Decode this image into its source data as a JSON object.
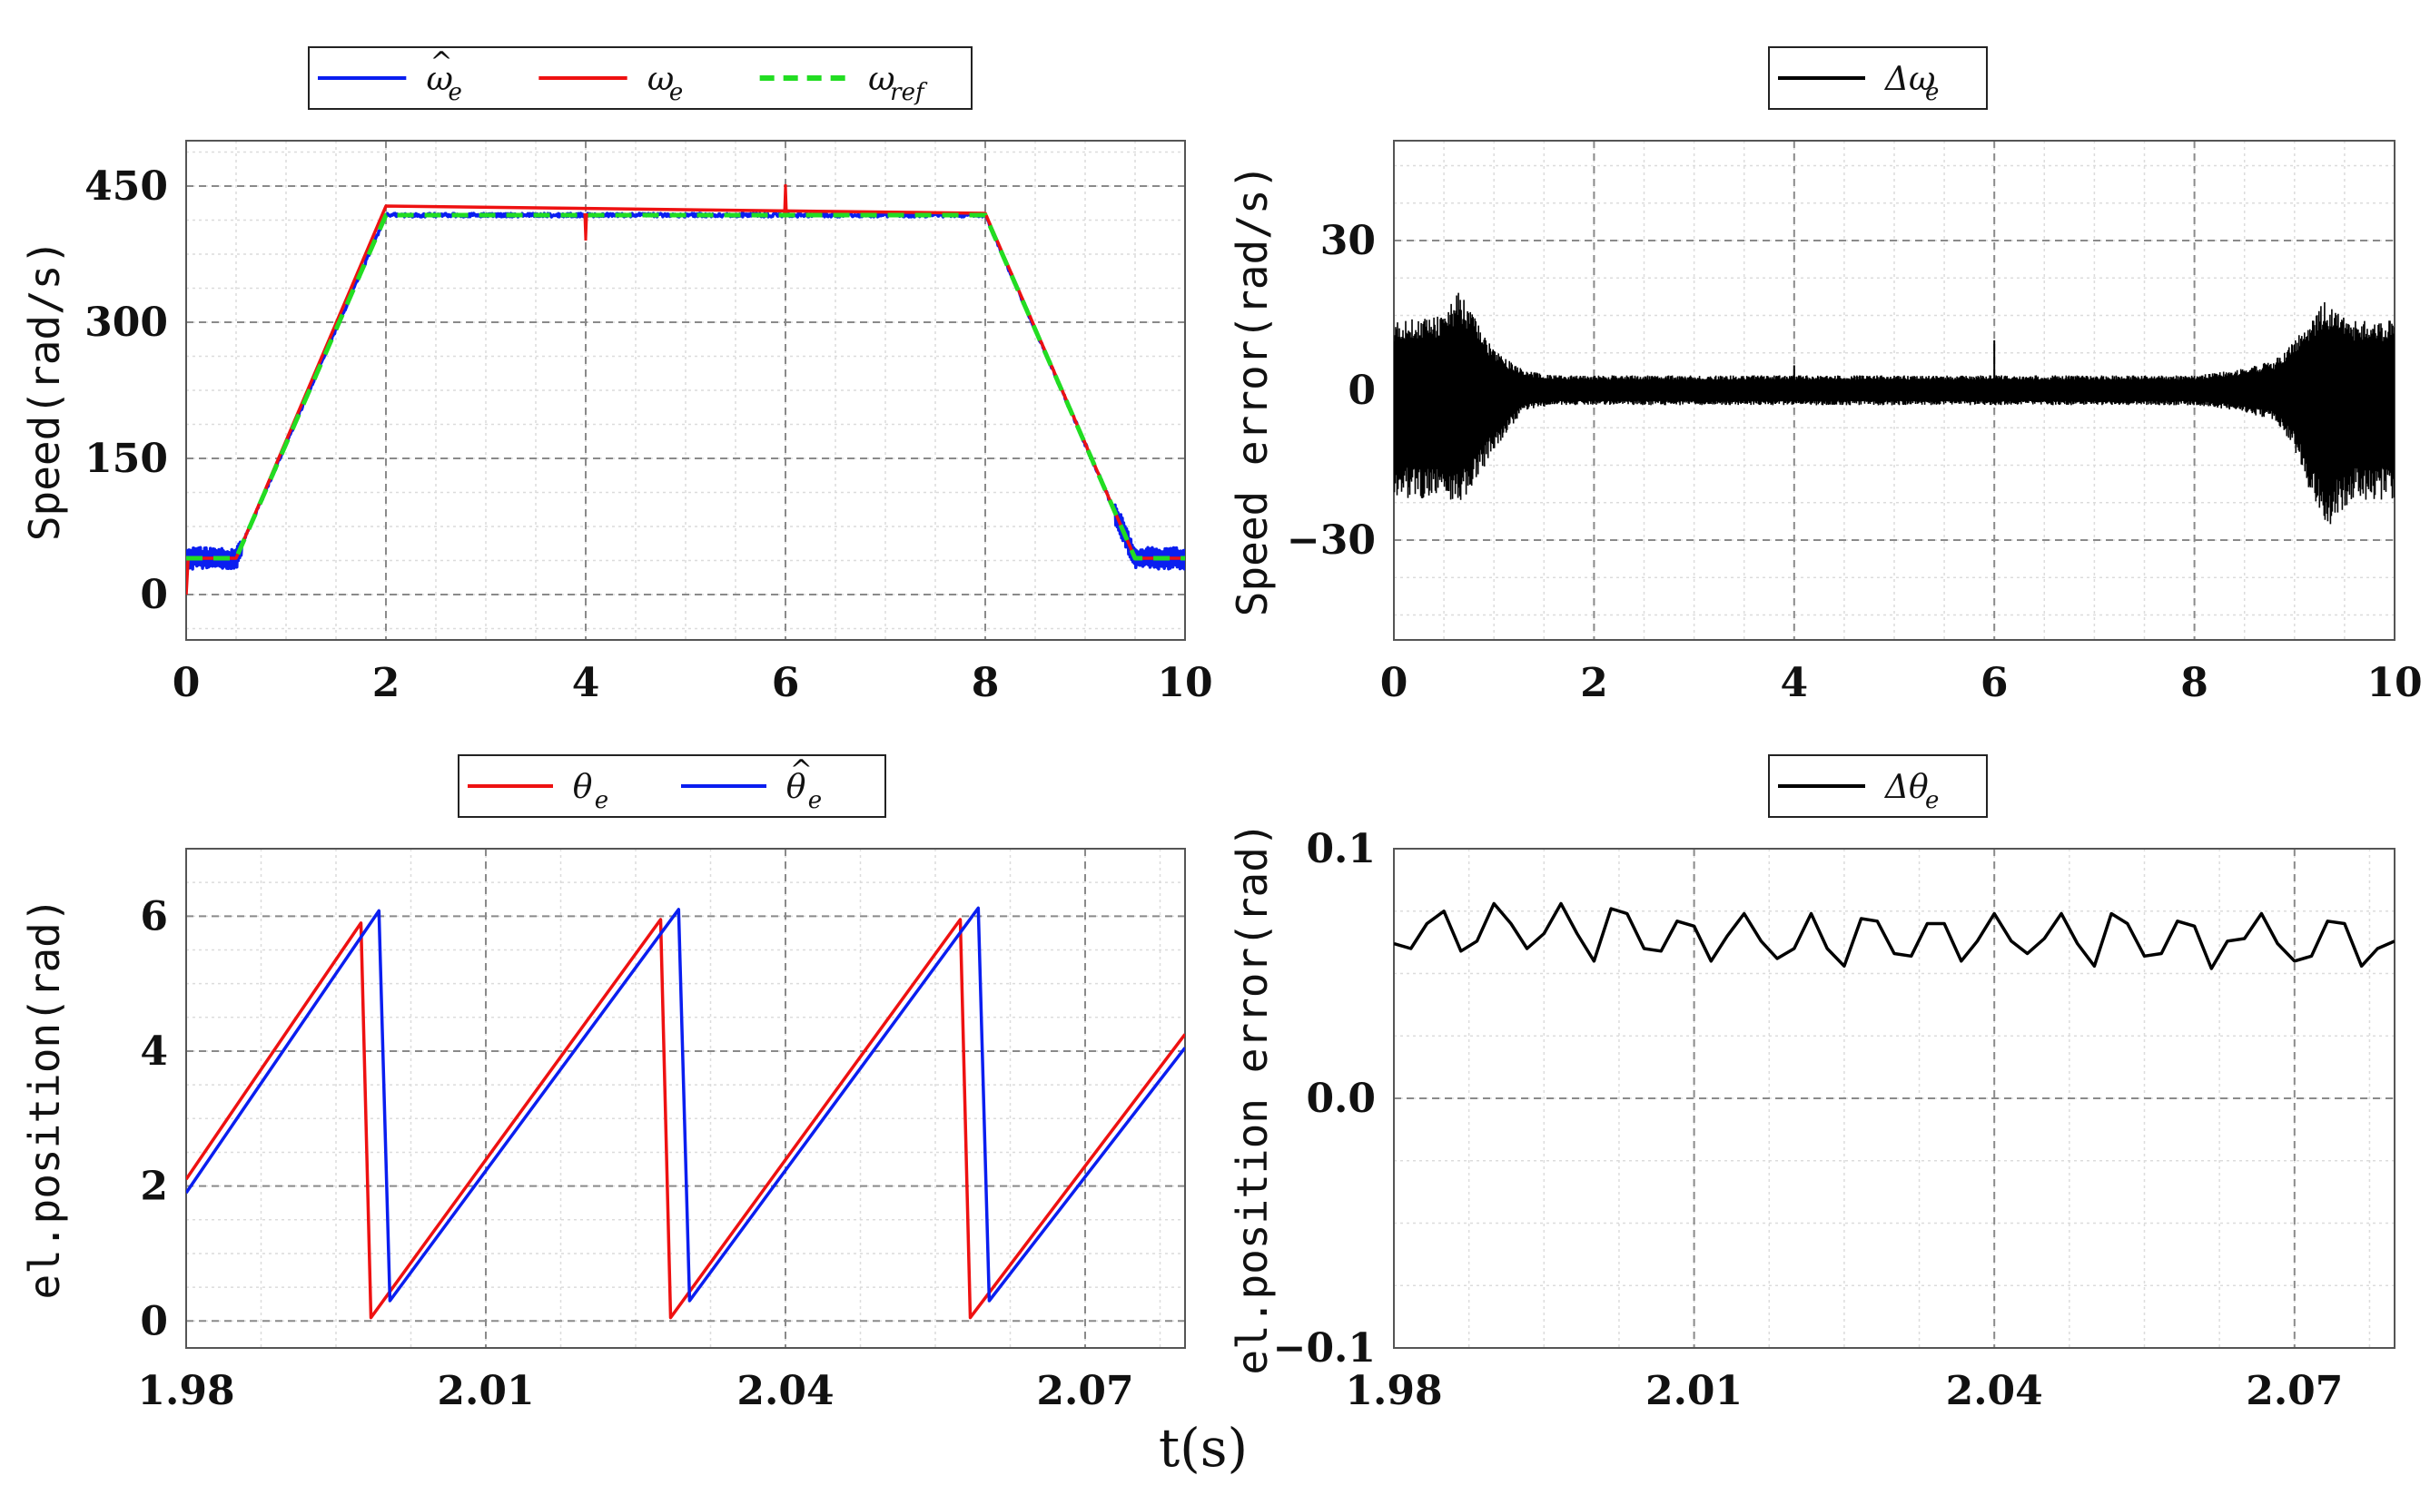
{
  "figure": {
    "xlabel_shared": "t(s)"
  },
  "chart_data": [
    {
      "id": "speed",
      "type": "line",
      "ylabel": "Speed(rad/s)",
      "xlabel": "",
      "xlim": [
        0,
        10
      ],
      "ylim": [
        -50,
        500
      ],
      "xticks": [
        0,
        2,
        4,
        6,
        8,
        10
      ],
      "xtick_labels": [
        "0",
        "2",
        "4",
        "6",
        "8",
        "10"
      ],
      "yticks": [
        0,
        150,
        300,
        450
      ],
      "ytick_labels": [
        "0",
        "150",
        "300",
        "450"
      ],
      "legend": [
        {
          "name": "ω",
          "sub": "e",
          "hat": "^",
          "color": "#0a1ef0",
          "dash": "solid"
        },
        {
          "name": "ω",
          "sub": "e",
          "hat": "",
          "color": "#ee1111",
          "dash": "solid"
        },
        {
          "name": "ω",
          "sub": "ref",
          "hat": "",
          "color": "#22dd22",
          "dash": "dashed"
        }
      ],
      "series": [
        {
          "name": "ω_e estimated",
          "color": "#0a1ef0",
          "x": [
            0,
            0.5,
            2,
            8,
            9.5,
            10
          ],
          "y": [
            40,
            40,
            418,
            418,
            40,
            40
          ],
          "noise_ranges": [
            [
              0,
              0.55,
              12
            ],
            [
              9.3,
              10,
              12
            ]
          ]
        },
        {
          "name": "ω_e",
          "color": "#ee1111",
          "x": [
            0,
            0.02,
            0.5,
            2,
            8,
            9.5,
            10
          ],
          "y": [
            0,
            40,
            40,
            428,
            420,
            40,
            40
          ],
          "spikes": [
            [
              4,
              390
            ],
            [
              6,
              452
            ]
          ]
        },
        {
          "name": "ω_ref",
          "color": "#22dd22",
          "x": [
            0,
            0.5,
            2,
            8,
            9.5,
            10
          ],
          "y": [
            40,
            40,
            418,
            418,
            40,
            40
          ]
        }
      ]
    },
    {
      "id": "speed_error",
      "type": "line",
      "ylabel": "Speed error(rad/s)",
      "xlabel": "",
      "xlim": [
        0,
        10
      ],
      "ylim": [
        -50,
        50
      ],
      "xticks": [
        0,
        2,
        4,
        6,
        8,
        10
      ],
      "xtick_labels": [
        "0",
        "2",
        "4",
        "6",
        "8",
        "10"
      ],
      "yticks": [
        -30,
        0,
        30
      ],
      "ytick_labels": [
        "−30",
        "0",
        "30"
      ],
      "legend": [
        {
          "name": "Δω",
          "sub": "e",
          "hat": "",
          "color": "#000000",
          "dash": "solid"
        }
      ],
      "series": [
        {
          "name": "Δω_e",
          "color": "#000000",
          "envelope": {
            "t": [
              0,
              0.5,
              0.65,
              1.0,
              1.3,
              1.6,
              2,
              8,
              8.4,
              8.8,
              9.0,
              9.3,
              9.6,
              10
            ],
            "upper": [
              14,
              15,
              20,
              8,
              4,
              3,
              3,
              3,
              4,
              6,
              10,
              18,
              14,
              14
            ],
            "lower": [
              -22,
              -22,
              -24,
              -12,
              -4,
              -3,
              -3,
              -3,
              -4,
              -6,
              -12,
              -28,
              -22,
              -22
            ]
          },
          "spikes": [
            [
              4,
              5
            ],
            [
              6,
              10
            ]
          ]
        }
      ]
    },
    {
      "id": "position",
      "type": "line",
      "ylabel": "el.position(rad)",
      "xlabel": "",
      "xlim": [
        1.98,
        2.08
      ],
      "ylim": [
        -0.4,
        7
      ],
      "xticks": [
        1.98,
        2.01,
        2.04,
        2.07
      ],
      "xtick_labels": [
        "1.98",
        "2.01",
        "2.04",
        "2.07"
      ],
      "yticks": [
        0,
        2,
        4,
        6
      ],
      "ytick_labels": [
        "0",
        "2",
        "4",
        "6"
      ],
      "legend": [
        {
          "name": "θ",
          "sub": "e",
          "hat": "",
          "color": "#ee1111",
          "dash": "solid"
        },
        {
          "name": "θ",
          "sub": "e",
          "hat": "^",
          "color": "#0a1ef0",
          "dash": "solid"
        }
      ],
      "series": [
        {
          "name": "θ_e",
          "color": "#ee1111",
          "x": [
            1.98,
            1.9975,
            1.9985,
            2.0275,
            2.0285,
            2.0575,
            2.0585,
            2.08
          ],
          "y": [
            2.1,
            5.9,
            0.05,
            5.95,
            0.05,
            5.95,
            0.05,
            4.25
          ]
        },
        {
          "name": "θ_e estimated",
          "color": "#0a1ef0",
          "x": [
            1.98,
            1.9993,
            2.0004,
            2.0293,
            2.0304,
            2.0593,
            2.0604,
            2.08
          ],
          "y": [
            1.9,
            6.08,
            0.3,
            6.1,
            0.3,
            6.12,
            0.3,
            4.05
          ]
        }
      ]
    },
    {
      "id": "position_error",
      "type": "line",
      "ylabel": "el.position error(rad)",
      "xlabel": "",
      "xlim": [
        1.98,
        2.08
      ],
      "ylim": [
        -0.1,
        0.1
      ],
      "xticks": [
        1.98,
        2.01,
        2.04,
        2.07
      ],
      "xtick_labels": [
        "1.98",
        "2.01",
        "2.04",
        "2.07"
      ],
      "yticks": [
        -0.1,
        0.0,
        0.1
      ],
      "ytick_labels": [
        "−0.1",
        "0.0",
        "0.1"
      ],
      "legend": [
        {
          "name": "Δθ",
          "sub": "e",
          "hat": "",
          "color": "#000000",
          "dash": "solid"
        }
      ],
      "series": [
        {
          "name": "Δθ_e",
          "color": "#000000",
          "x": [
            1.98,
            1.9817,
            1.9833,
            1.985,
            1.9867,
            1.9883,
            1.99,
            1.9917,
            1.9933,
            1.995,
            1.9967,
            1.9983,
            2.0,
            2.0017,
            2.0033,
            2.005,
            2.0067,
            2.0083,
            2.01,
            2.0117,
            2.0133,
            2.015,
            2.0167,
            2.0183,
            2.02,
            2.0217,
            2.0233,
            2.025,
            2.0267,
            2.0283,
            2.03,
            2.0317,
            2.0333,
            2.035,
            2.0367,
            2.0383,
            2.04,
            2.0417,
            2.0433,
            2.045,
            2.0467,
            2.0483,
            2.05,
            2.0517,
            2.0533,
            2.055,
            2.0567,
            2.0583,
            2.06,
            2.0617,
            2.0633,
            2.065,
            2.0667,
            2.0683,
            2.07,
            2.0717,
            2.0733,
            2.075,
            2.0767,
            2.0783,
            2.08
          ],
          "y": [
            0.062,
            0.06,
            0.07,
            0.075,
            0.059,
            0.063,
            0.078,
            0.07,
            0.06,
            0.066,
            0.078,
            0.066,
            0.055,
            0.076,
            0.074,
            0.06,
            0.059,
            0.071,
            0.069,
            0.055,
            0.065,
            0.074,
            0.063,
            0.056,
            0.06,
            0.074,
            0.06,
            0.053,
            0.072,
            0.071,
            0.058,
            0.057,
            0.07,
            0.07,
            0.055,
            0.063,
            0.074,
            0.063,
            0.058,
            0.064,
            0.074,
            0.062,
            0.053,
            0.074,
            0.07,
            0.057,
            0.058,
            0.071,
            0.069,
            0.052,
            0.063,
            0.064,
            0.074,
            0.062,
            0.055,
            0.057,
            0.071,
            0.07,
            0.053,
            0.06,
            0.063
          ]
        }
      ]
    }
  ]
}
